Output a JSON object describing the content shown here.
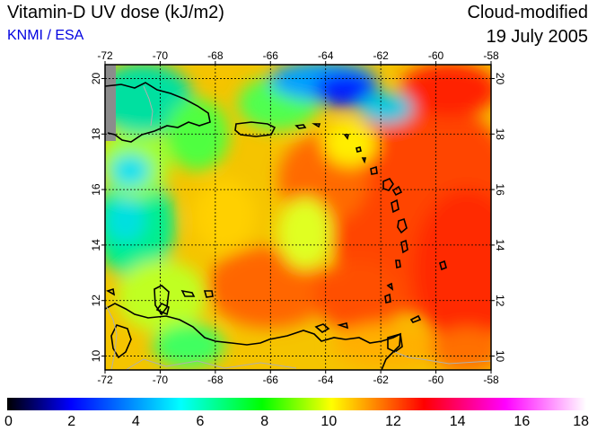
{
  "header": {
    "title": "Vitamin-D UV dose (kJ/m2)",
    "source": "KNMI / ESA",
    "product": "Cloud-modified",
    "date": "19 July 2005"
  },
  "map": {
    "lon_range": [
      -72,
      -58
    ],
    "lat_range": [
      9.5,
      20.5
    ],
    "lon_ticks": [
      "-72",
      "-70",
      "-68",
      "-66",
      "-64",
      "-62",
      "-60",
      "-58"
    ],
    "lat_ticks": [
      "10",
      "12",
      "14",
      "16",
      "18",
      "20"
    ],
    "grid": true,
    "no_data_color": "#8c8c8c",
    "coastline_color": "#000000"
  },
  "colorbar": {
    "min": 0,
    "max": 18,
    "labels": [
      "0",
      "2",
      "4",
      "6",
      "8",
      "10",
      "12",
      "14",
      "16",
      "18"
    ],
    "colors": [
      "#000000",
      "#0000ff",
      "#00ffff",
      "#00ff00",
      "#ffff00",
      "#ff0000",
      "#ff00ff",
      "#ffffff"
    ]
  }
}
